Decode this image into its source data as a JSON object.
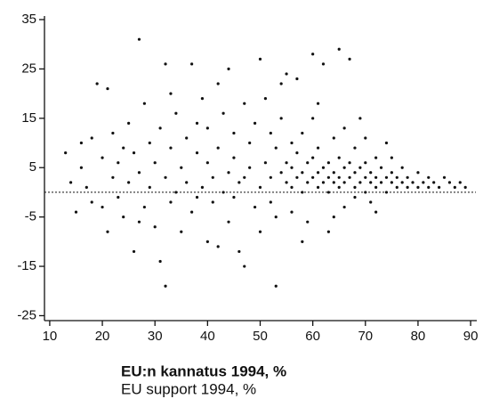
{
  "chart_data": {
    "type": "scatter",
    "x_label": "EU:n kannatus 1994, %",
    "x_label_2": "EU support 1994, %",
    "xlim": [
      9,
      91
    ],
    "xticks": [
      10,
      20,
      30,
      40,
      50,
      60,
      70,
      80,
      90
    ],
    "ylim": [
      -26,
      35
    ],
    "yticks": [
      -25,
      -15,
      -5,
      5,
      15,
      25,
      35
    ],
    "reference_y": 0,
    "color": "#111111",
    "x": [
      13,
      14,
      15,
      16,
      17,
      18,
      18,
      19,
      20,
      21,
      21,
      22,
      22,
      23,
      23,
      24,
      24,
      25,
      25,
      26,
      26,
      27,
      27,
      28,
      28,
      29,
      29,
      30,
      30,
      31,
      31,
      32,
      32,
      32,
      33,
      33,
      34,
      34,
      35,
      35,
      36,
      36,
      37,
      37,
      38,
      38,
      39,
      39,
      40,
      40,
      40,
      41,
      41,
      42,
      42,
      43,
      43,
      44,
      44,
      44,
      45,
      45,
      46,
      46,
      47,
      47,
      48,
      48,
      49,
      49,
      50,
      50,
      50,
      51,
      51,
      52,
      52,
      53,
      53,
      54,
      54,
      55,
      55,
      55,
      56,
      56,
      56,
      57,
      57,
      57,
      58,
      58,
      58,
      59,
      59,
      59,
      60,
      60,
      60,
      60,
      61,
      61,
      61,
      62,
      62,
      62,
      63,
      63,
      63,
      63,
      64,
      64,
      64,
      65,
      65,
      65,
      65,
      66,
      66,
      66,
      67,
      67,
      67,
      68,
      68,
      68,
      69,
      69,
      69,
      70,
      70,
      70,
      71,
      71,
      71,
      72,
      72,
      72,
      73,
      73,
      74,
      74,
      74,
      75,
      75,
      76,
      76,
      77,
      77,
      78,
      78,
      79,
      80,
      80,
      81,
      82,
      82,
      83,
      84,
      85,
      86,
      87,
      88,
      89,
      45,
      47,
      52,
      53,
      54,
      56,
      58,
      61,
      64,
      66,
      68,
      70,
      72,
      75,
      38,
      42,
      33,
      27,
      20,
      16
    ],
    "y": [
      8,
      2,
      -4,
      5,
      1,
      11,
      -2,
      22,
      7,
      21,
      -8,
      3,
      12,
      -1,
      6,
      9,
      -5,
      14,
      2,
      -12,
      8,
      31,
      4,
      18,
      -3,
      10,
      1,
      6,
      -7,
      13,
      -14,
      -19,
      3,
      26,
      9,
      -2,
      16,
      0,
      -8,
      5,
      11,
      2,
      26,
      -4,
      8,
      14,
      19,
      1,
      -10,
      6,
      13,
      3,
      -2,
      22,
      9,
      16,
      0,
      25,
      4,
      -6,
      12,
      7,
      -12,
      2,
      18,
      -15,
      5,
      10,
      -3,
      14,
      27,
      1,
      -8,
      6,
      19,
      3,
      -2,
      -19,
      9,
      22,
      4,
      2,
      6,
      24,
      1,
      5,
      -4,
      3,
      8,
      23,
      0,
      4,
      12,
      2,
      6,
      -6,
      3,
      7,
      28,
      15,
      1,
      4,
      9,
      2,
      5,
      26,
      0,
      3,
      6,
      -8,
      2,
      4,
      11,
      1,
      3,
      7,
      29,
      2,
      5,
      -3,
      3,
      6,
      27,
      1,
      4,
      9,
      2,
      5,
      15,
      0,
      3,
      6,
      2,
      4,
      -2,
      1,
      3,
      7,
      2,
      5,
      0,
      3,
      10,
      2,
      4,
      1,
      3,
      2,
      5,
      1,
      3,
      2,
      1,
      4,
      2,
      1,
      3,
      2,
      1,
      3,
      2,
      1,
      2,
      1,
      -1,
      3,
      12,
      -5,
      15,
      10,
      -10,
      18,
      -5,
      13,
      -1,
      11,
      -4,
      7,
      -1,
      -11,
      20,
      -6,
      -3,
      10
    ]
  }
}
